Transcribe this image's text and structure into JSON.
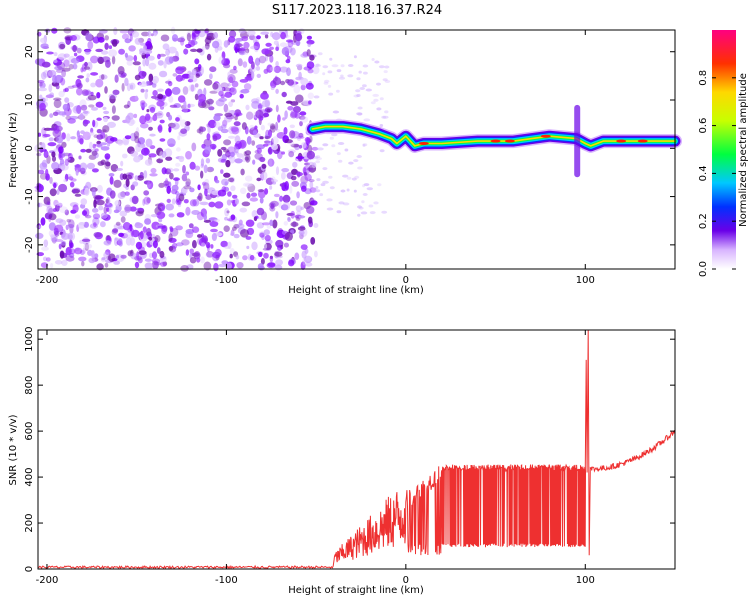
{
  "title": "S117.2023.118.16.37.R24",
  "chart_data": [
    {
      "type": "heatmap",
      "xlabel": "Height of straight line (km)",
      "ylabel": "Frequency (Hz)",
      "xlim": [
        -205,
        150
      ],
      "ylim": [
        -25,
        24.5
      ],
      "xticks": [
        -200,
        -100,
        0,
        100
      ],
      "yticks": [
        -20,
        -10,
        0,
        10,
        20
      ],
      "colorbar": {
        "label": "Normalized spectral amplitude",
        "range": [
          0,
          1
        ],
        "ticks": [
          "0.0",
          "0.2",
          "0.4",
          "0.6",
          "0.8"
        ]
      },
      "noise_region_x": [
        -205,
        -50
      ],
      "ridge": [
        {
          "x": -52,
          "f": 4
        },
        {
          "x": -45,
          "f": 4.5
        },
        {
          "x": -35,
          "f": 4.5
        },
        {
          "x": -25,
          "f": 4
        },
        {
          "x": -15,
          "f": 3
        },
        {
          "x": -8,
          "f": 2
        },
        {
          "x": -5,
          "f": 1
        },
        {
          "x": 0,
          "f": 2.5
        },
        {
          "x": 5,
          "f": 0.5
        },
        {
          "x": 10,
          "f": 1
        },
        {
          "x": 20,
          "f": 1
        },
        {
          "x": 40,
          "f": 1.5
        },
        {
          "x": 60,
          "f": 1.5
        },
        {
          "x": 80,
          "f": 2.5
        },
        {
          "x": 95,
          "f": 2
        },
        {
          "x": 100,
          "f": 1
        },
        {
          "x": 103,
          "f": 0.5
        },
        {
          "x": 110,
          "f": 1.5
        },
        {
          "x": 130,
          "f": 1.5
        },
        {
          "x": 150,
          "f": 1.5
        }
      ]
    },
    {
      "type": "line",
      "xlabel": "Height of straight line (km)",
      "ylabel": "SNR (10 * v/v)",
      "xlim": [
        -205,
        150
      ],
      "ylim": [
        0,
        1040
      ],
      "xticks": [
        -200,
        -100,
        0,
        100
      ],
      "yticks": [
        0,
        200,
        400,
        600,
        800,
        1000
      ],
      "color": "#ee3030",
      "segments": [
        {
          "x": [
            -205,
            -40
          ],
          "baseline": 8
        },
        {
          "x": [
            -40,
            0
          ],
          "start": 60,
          "end": 330
        },
        {
          "x": [
            0,
            20
          ],
          "start": 300,
          "end": 420
        },
        {
          "x": [
            20,
            100
          ],
          "upper": 440,
          "lower": 95
        },
        {
          "x": [
            100,
            103
          ],
          "peaks": [
            910,
            1040
          ]
        },
        {
          "x": [
            103,
            150
          ],
          "start": 435,
          "end": 600
        }
      ]
    }
  ]
}
